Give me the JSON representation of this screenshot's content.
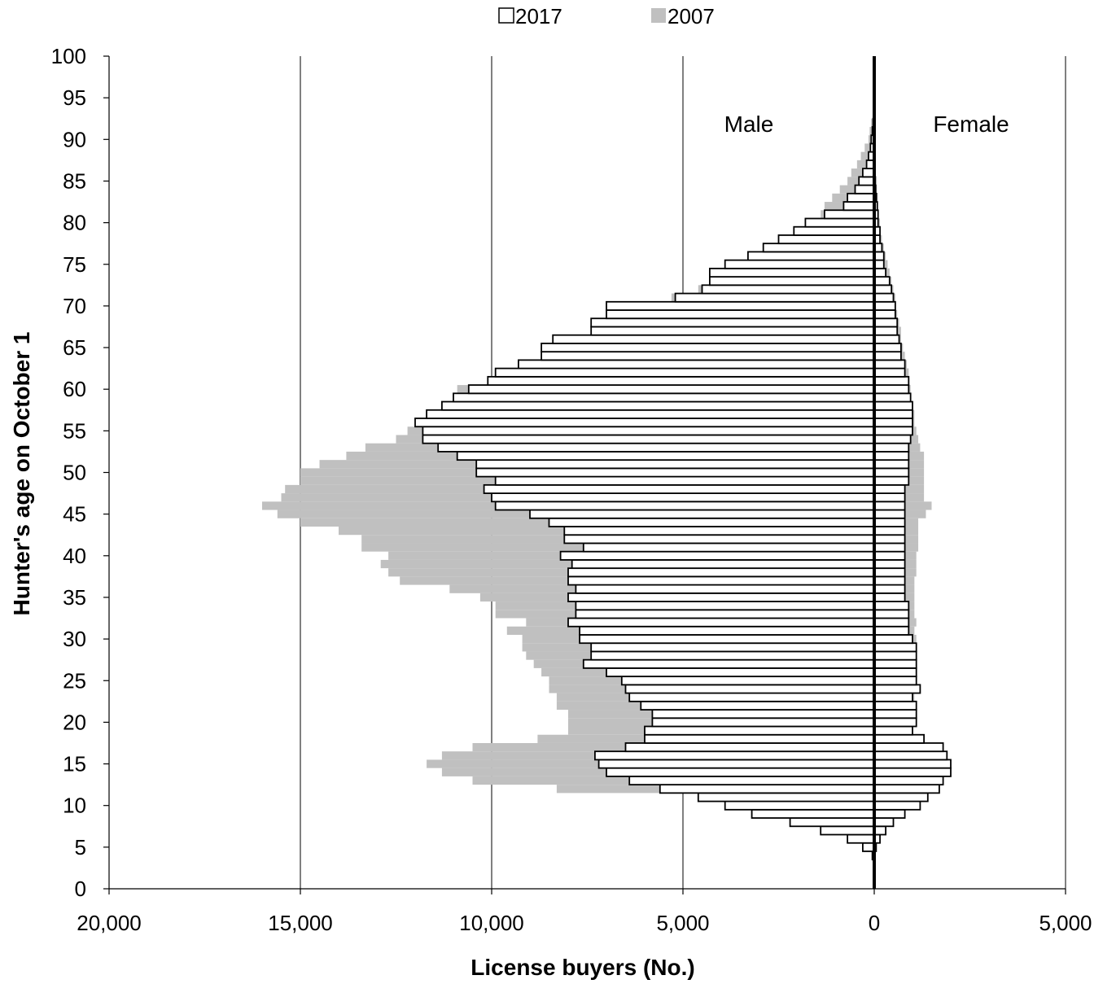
{
  "chart_data": {
    "type": "bar",
    "orientation": "horizontal",
    "xlabel": "License buyers (No.)",
    "ylabel": "Hunter's age on October 1",
    "xlim": [
      -20000,
      5000
    ],
    "ylim": [
      0,
      100
    ],
    "x_ticks": [
      -20000,
      -15000,
      -10000,
      -5000,
      0,
      5000
    ],
    "x_tick_labels": [
      "20,000",
      "15,000",
      "10,000",
      "5,000",
      "0",
      "5,000"
    ],
    "y_ticks": [
      0,
      5,
      10,
      15,
      20,
      25,
      30,
      35,
      40,
      45,
      50,
      55,
      60,
      65,
      70,
      75,
      80,
      85,
      90,
      95,
      100
    ],
    "y_tick_labels": [
      "0",
      "5",
      "10",
      "15",
      "20",
      "25",
      "30",
      "35",
      "40",
      "45",
      "50",
      "55",
      "60",
      "65",
      "70",
      "75",
      "80",
      "85",
      "90",
      "95",
      "100"
    ],
    "grid": "vertical",
    "legend_position": "top-center",
    "annotations": [
      {
        "text": "Male",
        "side": "male"
      },
      {
        "text": "Female",
        "side": "female"
      }
    ],
    "ages": [
      4,
      5,
      6,
      7,
      8,
      9,
      10,
      11,
      12,
      13,
      14,
      15,
      16,
      17,
      18,
      19,
      20,
      21,
      22,
      23,
      24,
      25,
      26,
      27,
      28,
      29,
      30,
      31,
      32,
      33,
      34,
      35,
      36,
      37,
      38,
      39,
      40,
      41,
      42,
      43,
      44,
      45,
      46,
      47,
      48,
      49,
      50,
      51,
      52,
      53,
      54,
      55,
      56,
      57,
      58,
      59,
      60,
      61,
      62,
      63,
      64,
      65,
      66,
      67,
      68,
      69,
      70,
      71,
      72,
      73,
      74,
      75,
      76,
      77,
      78,
      79,
      80,
      81,
      82,
      83,
      84,
      85,
      86,
      87,
      88,
      89,
      90,
      91,
      92
    ],
    "series": [
      {
        "name": "2017",
        "color": "#ffffff",
        "male": [
          50,
          300,
          700,
          1400,
          2200,
          3200,
          3900,
          4600,
          5600,
          6400,
          7000,
          7200,
          7300,
          6500,
          6000,
          6000,
          5800,
          5800,
          6100,
          6400,
          6500,
          6600,
          7000,
          7600,
          7400,
          7400,
          7700,
          7700,
          8000,
          7800,
          7800,
          8000,
          7800,
          8000,
          8000,
          7900,
          8200,
          7600,
          8100,
          8100,
          8500,
          9000,
          9900,
          10000,
          10200,
          9900,
          10400,
          10400,
          10900,
          11400,
          11800,
          11800,
          12000,
          11700,
          11300,
          11000,
          10600,
          10100,
          9900,
          9300,
          8700,
          8700,
          8400,
          7400,
          7400,
          7000,
          7000,
          5200,
          4500,
          4300,
          4300,
          3900,
          3300,
          2900,
          2500,
          2100,
          1800,
          1300,
          800,
          700,
          500,
          400,
          300,
          200,
          150,
          100,
          80,
          50,
          30
        ],
        "female": [
          0,
          50,
          150,
          300,
          500,
          800,
          1200,
          1400,
          1700,
          1800,
          2000,
          2000,
          1900,
          1800,
          1300,
          1000,
          1100,
          1100,
          1100,
          1000,
          1200,
          1100,
          1100,
          1100,
          1100,
          1100,
          1000,
          900,
          900,
          900,
          900,
          800,
          800,
          800,
          800,
          800,
          800,
          800,
          800,
          800,
          800,
          800,
          800,
          800,
          800,
          900,
          900,
          900,
          900,
          900,
          950,
          1000,
          1000,
          1000,
          1000,
          950,
          900,
          900,
          800,
          800,
          700,
          700,
          650,
          600,
          600,
          550,
          550,
          500,
          450,
          400,
          300,
          250,
          250,
          200,
          150,
          150,
          100,
          100,
          80,
          60,
          40,
          30,
          20,
          15,
          10,
          5,
          5,
          3,
          2
        ]
      },
      {
        "name": "2007",
        "color": "#c0c0c0",
        "male": [
          0,
          100,
          200,
          400,
          600,
          1000,
          2000,
          3000,
          8300,
          10500,
          11300,
          11700,
          11300,
          10500,
          8800,
          8000,
          8000,
          8000,
          8300,
          8300,
          8500,
          8500,
          8700,
          8900,
          9100,
          9200,
          9200,
          9600,
          9100,
          9900,
          9900,
          10300,
          11100,
          12400,
          12700,
          12900,
          12700,
          13400,
          13400,
          14000,
          15000,
          15600,
          16000,
          15500,
          15400,
          15000,
          15000,
          14500,
          13800,
          13300,
          12500,
          12200,
          11500,
          11500,
          11200,
          10900,
          10900,
          10100,
          9600,
          8800,
          8000,
          7500,
          7300,
          7300,
          7000,
          6600,
          5900,
          5300,
          4600,
          4200,
          3500,
          2800,
          2700,
          2200,
          2200,
          2000,
          1700,
          1400,
          1300,
          1100,
          900,
          700,
          600,
          450,
          350,
          250,
          150,
          120,
          80
        ],
        "female": [
          0,
          0,
          0,
          100,
          250,
          400,
          500,
          600,
          700,
          750,
          800,
          800,
          850,
          850,
          950,
          950,
          950,
          1000,
          1000,
          1050,
          1000,
          1000,
          1000,
          1000,
          1050,
          1100,
          1100,
          1050,
          1100,
          1050,
          1050,
          1050,
          1050,
          1050,
          1100,
          1100,
          1100,
          1150,
          1150,
          1150,
          1150,
          1350,
          1500,
          1300,
          1300,
          1300,
          1300,
          1300,
          1300,
          1200,
          1150,
          1100,
          1050,
          1050,
          1000,
          950,
          950,
          900,
          900,
          850,
          800,
          750,
          700,
          700,
          650,
          600,
          550,
          550,
          500,
          450,
          400,
          350,
          300,
          250,
          200,
          150,
          150,
          100,
          80,
          60,
          40,
          30,
          20,
          15,
          10,
          5,
          5,
          3,
          2
        ]
      }
    ]
  }
}
